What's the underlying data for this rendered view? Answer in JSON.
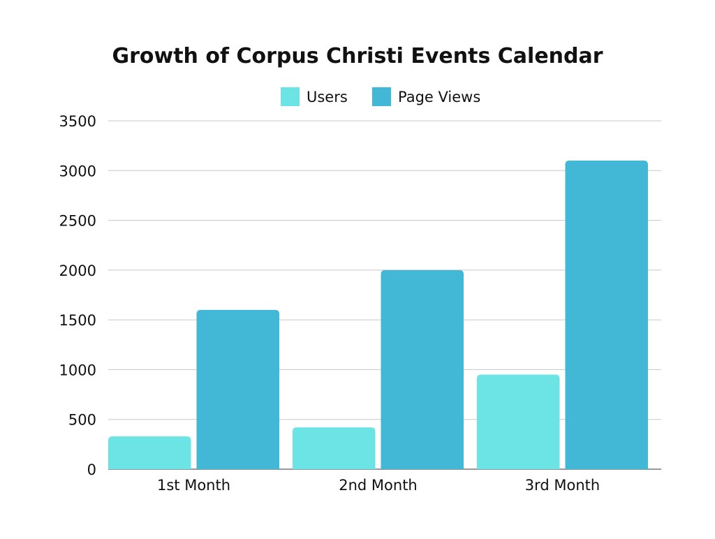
{
  "chart_data": {
    "type": "bar",
    "title": "Growth of Corpus Christi Events Calendar",
    "xlabel": "",
    "ylabel": "",
    "categories": [
      "1st Month",
      "2nd Month",
      "3rd Month"
    ],
    "series": [
      {
        "name": "Users",
        "values": [
          330,
          420,
          950
        ],
        "color": "#6ce4e6"
      },
      {
        "name": "Page Views",
        "values": [
          1600,
          2000,
          3100
        ],
        "color": "#42b7d6"
      }
    ],
    "ylim": [
      0,
      3500
    ],
    "yticks": [
      "0",
      "500",
      "1000",
      "1500",
      "2000",
      "2500",
      "3000",
      "3500"
    ],
    "grid": true,
    "legend": "top-center"
  }
}
